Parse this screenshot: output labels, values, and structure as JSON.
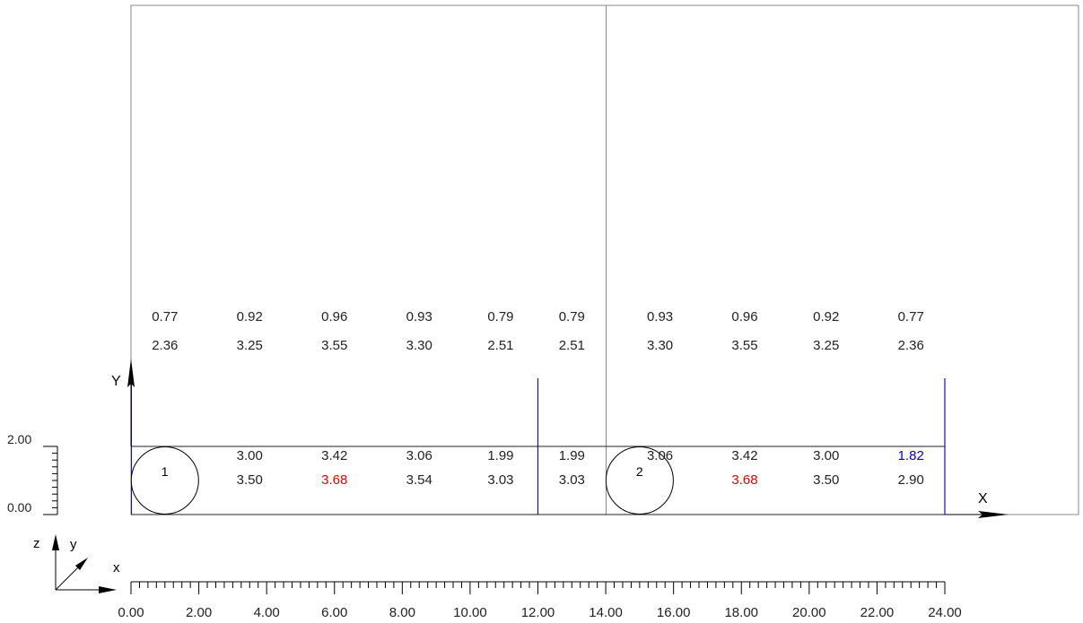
{
  "axes": {
    "x_label": "X",
    "y_label": "Y"
  },
  "triad": {
    "z": "z",
    "y": "y",
    "x": "x"
  },
  "rulers": {
    "x_ticks": [
      "0.00",
      "2.00",
      "4.00",
      "6.00",
      "8.00",
      "10.00",
      "12.00",
      "14.00",
      "16.00",
      "18.00",
      "20.00",
      "22.00",
      "24.00"
    ],
    "y_ticks": [
      "2.00",
      "0.00"
    ]
  },
  "circles": [
    {
      "label": "1",
      "x_pos": 1.0
    },
    {
      "label": "2",
      "x_pos": 15.0
    }
  ],
  "row1": [
    {
      "x": 1.0,
      "text": "0.77"
    },
    {
      "x": 3.5,
      "text": "0.92"
    },
    {
      "x": 6.0,
      "text": "0.96"
    },
    {
      "x": 8.5,
      "text": "0.93"
    },
    {
      "x": 10.9,
      "text": "0.79"
    },
    {
      "x": 13.0,
      "text": "0.79"
    },
    {
      "x": 15.6,
      "text": "0.93"
    },
    {
      "x": 18.1,
      "text": "0.96"
    },
    {
      "x": 20.5,
      "text": "0.92"
    },
    {
      "x": 23.0,
      "text": "0.77"
    }
  ],
  "row2": [
    {
      "x": 1.0,
      "text": "2.36"
    },
    {
      "x": 3.5,
      "text": "3.25"
    },
    {
      "x": 6.0,
      "text": "3.55"
    },
    {
      "x": 8.5,
      "text": "3.30"
    },
    {
      "x": 10.9,
      "text": "2.51"
    },
    {
      "x": 13.0,
      "text": "2.51"
    },
    {
      "x": 15.6,
      "text": "3.30"
    },
    {
      "x": 18.1,
      "text": "3.55"
    },
    {
      "x": 20.5,
      "text": "3.25"
    },
    {
      "x": 23.0,
      "text": "2.36"
    }
  ],
  "row3": [
    {
      "x": 3.5,
      "text": "3.00"
    },
    {
      "x": 6.0,
      "text": "3.42"
    },
    {
      "x": 8.5,
      "text": "3.06"
    },
    {
      "x": 10.9,
      "text": "1.99"
    },
    {
      "x": 13.0,
      "text": "1.99"
    },
    {
      "x": 15.6,
      "text": "3.06"
    },
    {
      "x": 18.1,
      "text": "3.42"
    },
    {
      "x": 20.5,
      "text": "3.00"
    },
    {
      "x": 23.0,
      "text": "1.82",
      "color": "#0000dd"
    }
  ],
  "row4": [
    {
      "x": 3.5,
      "text": "3.50"
    },
    {
      "x": 6.0,
      "text": "3.68",
      "color": "#ee0000"
    },
    {
      "x": 8.5,
      "text": "3.54"
    },
    {
      "x": 10.9,
      "text": "3.03"
    },
    {
      "x": 13.0,
      "text": "3.03"
    },
    {
      "x": 18.1,
      "text": "3.68",
      "color": "#ee0000"
    },
    {
      "x": 20.5,
      "text": "3.50"
    },
    {
      "x": 23.0,
      "text": "2.90"
    }
  ],
  "supports_x": [
    12.0,
    24.0
  ],
  "colors": {
    "support": "#1010cc",
    "highlight_red": "#ee0000",
    "highlight_blue": "#0000dd",
    "frame": "#888888",
    "text": "#222222"
  }
}
